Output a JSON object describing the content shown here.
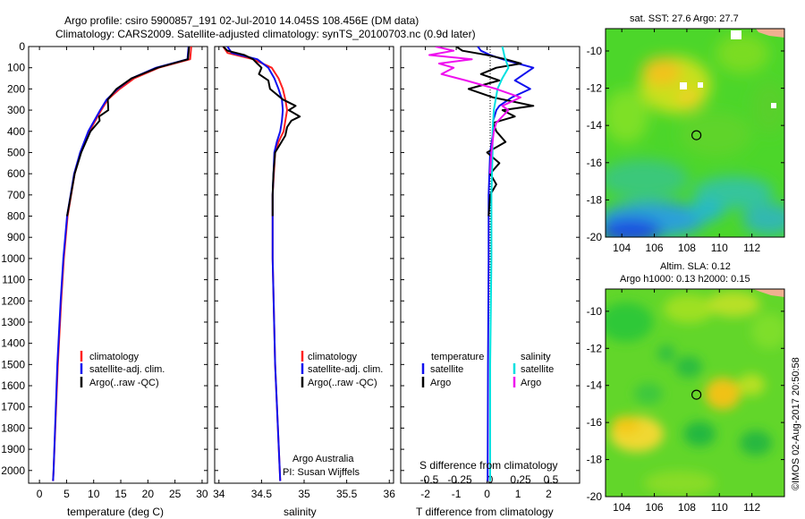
{
  "title_line1": "Argo profile: csiro 5900857_191 02-Jul-2010 14.045S 108.456E (DM data)",
  "title_line2": "Climatology: CARS2009. Satellite-adjusted climatology: synTS_20100703.nc (0.9d later)",
  "footer_right": "©IMOS 02-Aug-2017 20:50:58",
  "colors": {
    "climatology": "#ff2020",
    "satellite": "#1010ee",
    "argo": "#000000",
    "salinity_satellite": "#00e0e0",
    "salinity_argo": "#ee10ee"
  },
  "chart_data": [
    {
      "type": "line",
      "name": "temperature-profile",
      "xlabel": "temperature (deg C)",
      "ylabel": "",
      "xlim": [
        -2,
        31
      ],
      "ylim": [
        2060,
        0
      ],
      "xticks": [
        0,
        5,
        10,
        15,
        20,
        25,
        30
      ],
      "yticks": [
        0,
        100,
        200,
        300,
        400,
        500,
        600,
        700,
        800,
        900,
        1000,
        1100,
        1200,
        1300,
        1400,
        1500,
        1600,
        1700,
        1800,
        1900,
        2000
      ],
      "legend": [
        "climatology",
        "satellite-adj. clim.",
        "Argo(..raw -QC)"
      ],
      "series": [
        {
          "name": "climatology",
          "depth": [
            0,
            60,
            100,
            150,
            200,
            250,
            300,
            400,
            500,
            600,
            800,
            1000,
            1200,
            1500,
            2000,
            2050
          ],
          "values": [
            28,
            27.8,
            22,
            17.5,
            14.8,
            12.6,
            11.4,
            9.2,
            7.6,
            6.5,
            5.2,
            4.5,
            4,
            3.4,
            2.6,
            2.5
          ]
        },
        {
          "name": "satellite-adj. clim.",
          "depth": [
            0,
            60,
            100,
            150,
            200,
            250,
            300,
            400,
            500,
            600,
            800,
            1000,
            1200,
            1500,
            2000,
            2050
          ],
          "values": [
            27.5,
            27.3,
            21.5,
            17,
            14.4,
            12.4,
            11.2,
            9,
            7.5,
            6.4,
            5.1,
            4.4,
            3.9,
            3.3,
            2.6,
            2.5
          ]
        },
        {
          "name": "Argo(..raw -QC)",
          "depth": [
            0,
            60,
            100,
            150,
            200,
            250,
            300,
            330,
            350,
            400,
            500,
            600,
            700,
            800
          ],
          "values": [
            27.6,
            27.4,
            21.8,
            17,
            14.2,
            12.6,
            12.7,
            11,
            11.1,
            9.4,
            7.7,
            6.5,
            5.8,
            5.1
          ]
        }
      ]
    },
    {
      "type": "line",
      "name": "salinity-profile",
      "xlabel": "salinity",
      "xlim": [
        33.95,
        36.05
      ],
      "ylim": [
        2060,
        0
      ],
      "xticks": [
        34,
        34.5,
        35,
        35.5,
        36
      ],
      "xticklabels": [
        "34",
        "34.5",
        "35",
        "35.5",
        "36"
      ],
      "legend": [
        "climatology",
        "satellite-adj. clim.",
        "Argo(..raw -QC)"
      ],
      "annotation_line1": "Argo Australia",
      "annotation_line2": "PI: Susan Wijffels",
      "series": [
        {
          "name": "climatology",
          "depth": [
            0,
            30,
            60,
            100,
            150,
            200,
            250,
            300,
            350,
            400,
            450,
            500,
            700,
            1000,
            1500,
            2050
          ],
          "values": [
            34.05,
            34.1,
            34.4,
            34.62,
            34.7,
            34.75,
            34.78,
            34.8,
            34.78,
            34.76,
            34.7,
            34.66,
            34.63,
            34.63,
            34.66,
            34.72
          ]
        },
        {
          "name": "satellite-adj. clim.",
          "depth": [
            0,
            30,
            60,
            100,
            150,
            200,
            250,
            300,
            350,
            400,
            450,
            500,
            700,
            1000,
            1500,
            2050
          ],
          "values": [
            34.1,
            34.15,
            34.45,
            34.58,
            34.65,
            34.7,
            34.74,
            34.75,
            34.74,
            34.72,
            34.68,
            34.65,
            34.63,
            34.63,
            34.66,
            34.72
          ]
        },
        {
          "name": "Argo(..raw -QC)",
          "depth": [
            0,
            20,
            40,
            60,
            80,
            100,
            130,
            160,
            200,
            250,
            280,
            300,
            330,
            350,
            380,
            420,
            460,
            500,
            600,
            700,
            800
          ],
          "values": [
            34.05,
            34.1,
            34.3,
            34.4,
            34.45,
            34.5,
            34.47,
            34.58,
            34.6,
            34.75,
            34.9,
            34.82,
            34.95,
            34.85,
            34.8,
            34.78,
            34.72,
            34.66,
            34.64,
            34.63,
            34.63
          ]
        }
      ]
    },
    {
      "type": "line",
      "name": "difference-from-climatology",
      "xlabel": "T difference from climatology",
      "xlabel_top": "S difference from climatology",
      "xlim": [
        -2.8,
        3.0
      ],
      "ylim": [
        2060,
        0
      ],
      "xticks": [
        -2,
        -1,
        0,
        1,
        2
      ],
      "s_ticklabels": [
        "-0.5",
        "-0.25",
        "0",
        "0.25",
        "0.5"
      ],
      "legend_temperature_header": "temperature",
      "legend_salinity_header": "salinity",
      "legend_temperature": [
        "satellite",
        "Argo"
      ],
      "legend_salinity": [
        "satellite",
        "Argo"
      ],
      "series": [
        {
          "name": "T satellite",
          "depth": [
            0,
            20,
            40,
            60,
            80,
            100,
            130,
            160,
            200,
            240,
            280,
            300,
            350,
            400,
            500,
            700,
            1000,
            1500,
            2050
          ],
          "values": [
            -0.3,
            -0.2,
            0.1,
            0.5,
            1.0,
            1.5,
            1.2,
            0.9,
            1.4,
            0.8,
            0.4,
            0.3,
            0.2,
            0.2,
            0.1,
            0.05,
            0.05,
            0.03,
            0.02
          ]
        },
        {
          "name": "T Argo",
          "depth": [
            0,
            20,
            40,
            60,
            80,
            100,
            130,
            160,
            200,
            240,
            280,
            300,
            330,
            360,
            400,
            450,
            500,
            550,
            600,
            650,
            700,
            800
          ],
          "values": [
            -1.0,
            -0.8,
            0.0,
            0.6,
            1.1,
            0.3,
            -0.2,
            0.4,
            -0.6,
            0.2,
            1.5,
            0.5,
            0.9,
            0.2,
            0.3,
            0.6,
            0.0,
            0.4,
            0.1,
            0.3,
            0.1,
            0.05
          ]
        },
        {
          "name": "S satellite",
          "depth": [
            0,
            50,
            100,
            150,
            200,
            300,
            400,
            500,
            700,
            1000,
            1500,
            2050
          ],
          "values": [
            0.1,
            0.12,
            0.15,
            0.1,
            0.06,
            0.03,
            0.02,
            0.02,
            0.01,
            0.01,
            0,
            0
          ]
        },
        {
          "name": "S Argo",
          "depth": [
            0,
            20,
            40,
            60,
            80,
            100,
            130,
            160,
            200,
            240,
            280,
            300,
            330,
            360,
            400,
            450,
            500,
            600
          ],
          "values": [
            -0.45,
            -0.3,
            -0.5,
            -0.15,
            -0.42,
            -0.3,
            -0.4,
            -0.2,
            0.05,
            0.25,
            0.1,
            0.15,
            0.1,
            0.05,
            0.03,
            0.02,
            0.01,
            0
          ]
        }
      ]
    },
    {
      "type": "heatmap",
      "name": "sst-map",
      "title": "sat. SST: 27.6 Argo: 27.7",
      "xticks": [
        104,
        106,
        108,
        110,
        112
      ],
      "yticks": [
        -10,
        -12,
        -14,
        -16,
        -18,
        -20
      ],
      "xlim": [
        103,
        114
      ],
      "ylim": [
        -20,
        -8.8
      ],
      "marker": {
        "lon": 108.456,
        "lat": -14.045
      }
    },
    {
      "type": "heatmap",
      "name": "sla-map",
      "title_line1": "Altim. SLA: 0.12",
      "title_line2": "Argo h1000: 0.13 h2000: 0.15",
      "xticks": [
        104,
        106,
        108,
        110,
        112
      ],
      "yticks": [
        -10,
        -12,
        -14,
        -16,
        -18,
        -20
      ],
      "xlim": [
        103,
        114
      ],
      "ylim": [
        -20,
        -8.8
      ],
      "marker": {
        "lon": 108.456,
        "lat": -14.045
      }
    }
  ]
}
